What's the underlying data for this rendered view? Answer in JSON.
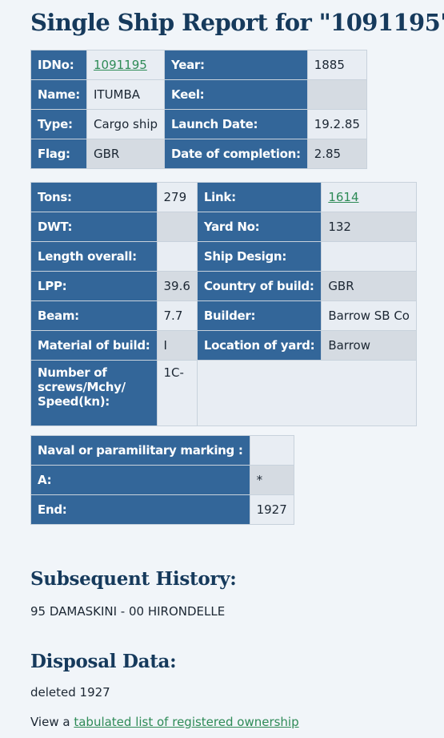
{
  "title": "Single Ship Report for \"1091195\"",
  "main": {
    "idno_label": "IDNo:",
    "idno_value": "1091195",
    "year_label": "Year:",
    "year_value": "1885",
    "name_label": "Name:",
    "name_value": "ITUMBA",
    "keel_label": "Keel:",
    "keel_value": "",
    "type_label": "Type:",
    "type_value": "Cargo ship",
    "launch_label": "Launch Date:",
    "launch_value": "19.2.85",
    "flag_label": "Flag:",
    "flag_value": "GBR",
    "completion_label": "Date of completion:",
    "completion_value": "2.85"
  },
  "specs": {
    "tons_label": "Tons:",
    "tons_value": "279",
    "link_label": "Link:",
    "link_value": "1614",
    "dwt_label": "DWT:",
    "dwt_value": "",
    "yard_label": "Yard No:",
    "yard_value": "132",
    "length_label": "Length overall:",
    "length_value": "",
    "design_label": "Ship Design:",
    "design_value": "",
    "lpp_label": "LPP:",
    "lpp_value": "39.6",
    "country_label": "Country of build:",
    "country_value": "GBR",
    "beam_label": "Beam:",
    "beam_value": "7.7",
    "builder_label": "Builder:",
    "builder_value": "Barrow SB Co",
    "material_label": "Material of build:",
    "material_value": "I",
    "location_label": "Location of yard:",
    "location_value": "Barrow",
    "screws_label": "Number of screws/Mchy/ Speed(kn):",
    "screws_value": "1C-"
  },
  "naval": {
    "marking_label": "Naval or paramilitary marking :",
    "marking_value": "",
    "a_label": "A:",
    "a_value": "*",
    "end_label": "End:",
    "end_value": "1927"
  },
  "history": {
    "heading": "Subsequent History:",
    "text": "95 DAMASKINI - 00 HIRONDELLE"
  },
  "disposal": {
    "heading": "Disposal Data:",
    "text": "deleted 1927",
    "view_prefix": "View a",
    "view_link": "tabulated list of registered ownership"
  }
}
